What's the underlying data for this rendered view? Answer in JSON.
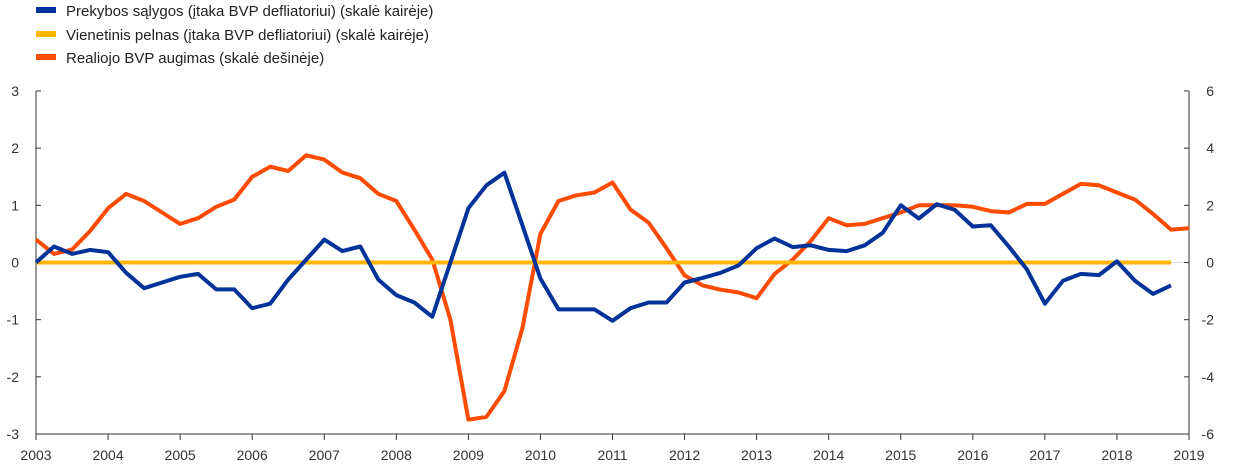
{
  "chart_data": {
    "type": "line",
    "legend_position": "top-left",
    "grid": false,
    "colors": {
      "series_0": "#003399",
      "series_1": "#ffb400",
      "series_2": "#ff4b00",
      "axis": "#333333",
      "zero_line_left": "#d9d9d9"
    },
    "x_ticks": [
      "2003",
      "2004",
      "2005",
      "2006",
      "2007",
      "2008",
      "2009",
      "2010",
      "2011",
      "2012",
      "2013",
      "2014",
      "2015",
      "2016",
      "2017",
      "2018",
      "2019"
    ],
    "xlim": [
      2003.0,
      2019.0
    ],
    "left_axis": {
      "ticks": [
        "3",
        "2",
        "1",
        "0",
        "-1",
        "-2",
        "-3"
      ],
      "ylim": [
        -3,
        3
      ]
    },
    "right_axis": {
      "ticks": [
        "6",
        "4",
        "2",
        "0",
        "-2",
        "-4",
        "-6"
      ],
      "ylim": [
        -6,
        6
      ]
    },
    "series": [
      {
        "name": "Prekybos sąlygos (įtaka BVP defliatoriui) (skalė kairėje)",
        "axis": "left",
        "x": [
          2003.0,
          2003.25,
          2003.5,
          2003.75,
          2004.0,
          2004.25,
          2004.5,
          2004.75,
          2005.0,
          2005.25,
          2005.5,
          2005.75,
          2006.0,
          2006.25,
          2006.5,
          2006.75,
          2007.0,
          2007.25,
          2007.5,
          2007.75,
          2008.0,
          2008.25,
          2008.5,
          2008.75,
          2009.0,
          2009.25,
          2009.5,
          2009.75,
          2010.0,
          2010.25,
          2010.5,
          2010.75,
          2011.0,
          2011.25,
          2011.5,
          2011.75,
          2012.0,
          2012.25,
          2012.5,
          2012.75,
          2013.0,
          2013.25,
          2013.5,
          2013.75,
          2014.0,
          2014.25,
          2014.5,
          2014.75,
          2015.0,
          2015.25,
          2015.5,
          2015.75,
          2016.0,
          2016.25,
          2016.5,
          2016.75,
          2017.0,
          2017.25,
          2017.5,
          2017.75,
          2018.0,
          2018.25,
          2018.5,
          2018.75
        ],
        "values": [
          0.0,
          0.28,
          0.15,
          0.22,
          0.18,
          -0.18,
          -0.45,
          -0.35,
          -0.25,
          -0.2,
          -0.47,
          -0.47,
          -0.8,
          -0.72,
          -0.3,
          0.05,
          0.4,
          0.2,
          0.28,
          -0.3,
          -0.57,
          -0.7,
          -0.95,
          0.0,
          0.95,
          1.35,
          1.57,
          0.65,
          -0.28,
          -0.82,
          -0.82,
          -0.82,
          -1.02,
          -0.8,
          -0.7,
          -0.7,
          -0.35,
          -0.27,
          -0.18,
          -0.05,
          0.25,
          0.42,
          0.27,
          0.3,
          0.22,
          0.2,
          0.3,
          0.52,
          1.0,
          0.77,
          1.02,
          0.92,
          0.63,
          0.65,
          0.28,
          -0.12,
          -0.72,
          -0.32,
          -0.2,
          -0.22,
          0.02,
          -0.32,
          -0.55,
          -0.4
        ]
      },
      {
        "name": "Vienetinis pelnas (įtaka BVP defliatoriui) (skalė kairėje)",
        "axis": "left",
        "x": [
          2003.0,
          2018.75
        ],
        "values": [
          0.0,
          0.0
        ]
      },
      {
        "name": "Realiojo BVP augimas (skalė dešinėje)",
        "axis": "right",
        "x": [
          2003.0,
          2003.25,
          2003.5,
          2003.75,
          2004.0,
          2004.25,
          2004.5,
          2004.75,
          2005.0,
          2005.25,
          2005.5,
          2005.75,
          2006.0,
          2006.25,
          2006.5,
          2006.75,
          2007.0,
          2007.25,
          2007.5,
          2007.75,
          2008.0,
          2008.25,
          2008.5,
          2008.75,
          2009.0,
          2009.25,
          2009.5,
          2009.75,
          2010.0,
          2010.25,
          2010.5,
          2010.75,
          2011.0,
          2011.25,
          2011.5,
          2011.75,
          2012.0,
          2012.25,
          2012.5,
          2012.75,
          2013.0,
          2013.25,
          2013.5,
          2013.75,
          2014.0,
          2014.25,
          2014.5,
          2014.75,
          2015.0,
          2015.25,
          2015.5,
          2015.75,
          2016.0,
          2016.25,
          2016.5,
          2016.75,
          2017.0,
          2017.25,
          2017.5,
          2017.75,
          2018.0,
          2018.25,
          2018.5,
          2018.75,
          2019.0
        ],
        "values": [
          0.8,
          0.3,
          0.45,
          1.1,
          1.9,
          2.4,
          2.15,
          1.75,
          1.35,
          1.55,
          1.95,
          2.2,
          3.0,
          3.35,
          3.2,
          3.75,
          3.6,
          3.15,
          2.95,
          2.4,
          2.15,
          1.15,
          0.1,
          -2.0,
          -5.5,
          -5.4,
          -4.5,
          -2.3,
          1.0,
          2.15,
          2.35,
          2.45,
          2.8,
          1.85,
          1.4,
          0.5,
          -0.45,
          -0.8,
          -0.95,
          -1.05,
          -1.25,
          -0.4,
          0.1,
          0.75,
          1.55,
          1.3,
          1.35,
          1.55,
          1.75,
          2.0,
          2.0,
          2.0,
          1.95,
          1.8,
          1.75,
          2.05,
          2.05,
          2.4,
          2.75,
          2.7,
          2.45,
          2.2,
          1.7,
          1.15,
          1.2
        ]
      }
    ]
  }
}
